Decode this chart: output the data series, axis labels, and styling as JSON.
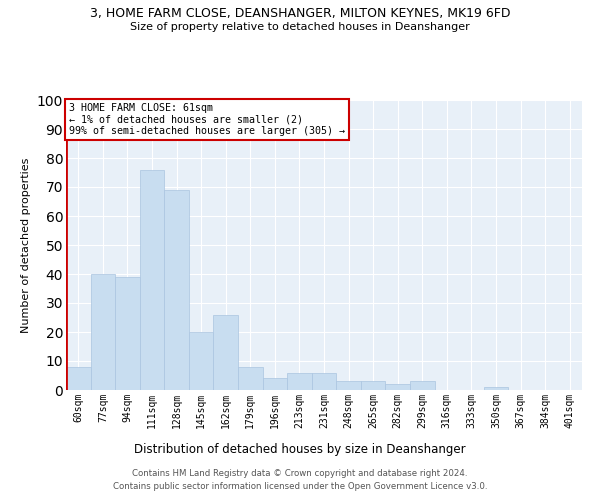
{
  "title": "3, HOME FARM CLOSE, DEANSHANGER, MILTON KEYNES, MK19 6FD",
  "subtitle": "Size of property relative to detached houses in Deanshanger",
  "xlabel": "Distribution of detached houses by size in Deanshanger",
  "ylabel": "Number of detached properties",
  "categories": [
    "60sqm",
    "77sqm",
    "94sqm",
    "111sqm",
    "128sqm",
    "145sqm",
    "162sqm",
    "179sqm",
    "196sqm",
    "213sqm",
    "231sqm",
    "248sqm",
    "265sqm",
    "282sqm",
    "299sqm",
    "316sqm",
    "333sqm",
    "350sqm",
    "367sqm",
    "384sqm",
    "401sqm"
  ],
  "values": [
    8,
    40,
    39,
    76,
    69,
    20,
    26,
    8,
    4,
    6,
    6,
    3,
    3,
    2,
    3,
    0,
    0,
    1,
    0,
    0,
    0
  ],
  "bar_color": "#c8ddf0",
  "bar_edge_color": "#aac4e0",
  "highlight_color": "#cc0000",
  "annotation_text": "3 HOME FARM CLOSE: 61sqm\n← 1% of detached houses are smaller (2)\n99% of semi-detached houses are larger (305) →",
  "annotation_box_color": "white",
  "annotation_box_edge": "#cc0000",
  "ylim": [
    0,
    100
  ],
  "yticks": [
    0,
    10,
    20,
    30,
    40,
    50,
    60,
    70,
    80,
    90,
    100
  ],
  "bg_color": "#e8f0f8",
  "footer1": "Contains HM Land Registry data © Crown copyright and database right 2024.",
  "footer2": "Contains public sector information licensed under the Open Government Licence v3.0."
}
